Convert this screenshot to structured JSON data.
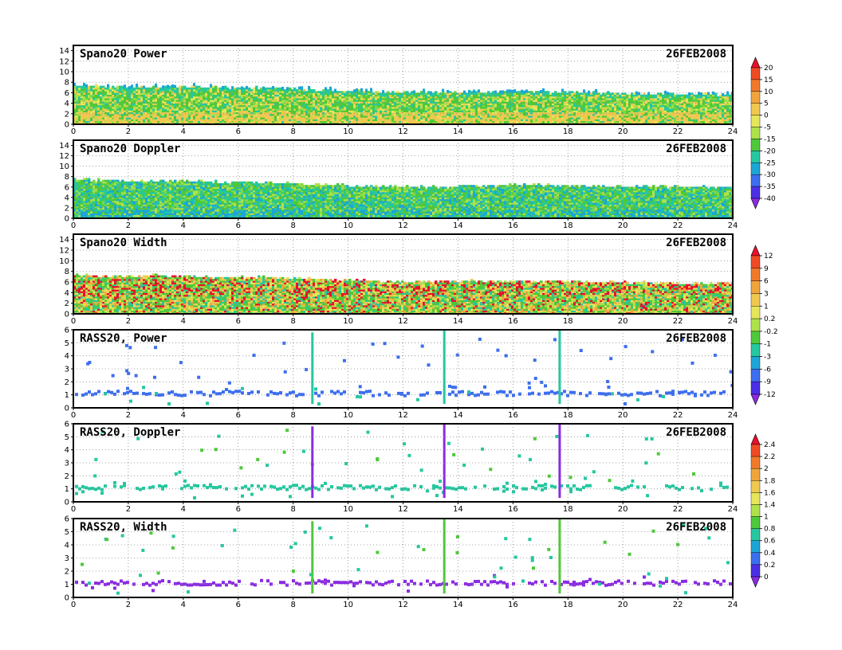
{
  "figure": {
    "date": "26FEB2008"
  },
  "chart_data": [
    {
      "type": "heatmap",
      "title": "Spano20 Power",
      "date": "26FEB2008",
      "xlim": [
        0,
        24
      ],
      "ylim": [
        0,
        15
      ],
      "xticks": [
        "0",
        "2",
        "4",
        "6",
        "8",
        "10",
        "12",
        "14",
        "16",
        "18",
        "20",
        "22",
        "24"
      ],
      "yticks": [
        "0",
        "2",
        "4",
        "6",
        "8",
        "10",
        "12",
        "14"
      ],
      "grid": true,
      "top_profile": [
        [
          0,
          7.2
        ],
        [
          1,
          7.2
        ],
        [
          2,
          6.9
        ],
        [
          3,
          7.0
        ],
        [
          4,
          7.1
        ],
        [
          5,
          6.9
        ],
        [
          6,
          6.8
        ],
        [
          7,
          6.8
        ],
        [
          8,
          6.6
        ],
        [
          9,
          6.4
        ],
        [
          10,
          6.2
        ],
        [
          11,
          6.1
        ],
        [
          12,
          6.0
        ],
        [
          13,
          5.9
        ],
        [
          14,
          5.9
        ],
        [
          15,
          6.0
        ],
        [
          16,
          6.1
        ],
        [
          17,
          6.0
        ],
        [
          18,
          6.0
        ],
        [
          19,
          5.9
        ],
        [
          20,
          5.8
        ],
        [
          21,
          5.6
        ],
        [
          22,
          5.5
        ],
        [
          23,
          5.5
        ],
        [
          24,
          5.5
        ]
      ]
    },
    {
      "type": "heatmap",
      "title": "Spano20 Doppler",
      "date": "26FEB2008",
      "xlim": [
        0,
        24
      ],
      "ylim": [
        0,
        15
      ],
      "xticks": [
        "0",
        "2",
        "4",
        "6",
        "8",
        "10",
        "12",
        "14",
        "16",
        "18",
        "20",
        "22",
        "24"
      ],
      "yticks": [
        "0",
        "2",
        "4",
        "6",
        "8",
        "10",
        "12",
        "14"
      ],
      "grid": true,
      "top_profile": [
        [
          0,
          7.4
        ],
        [
          1,
          7.2
        ],
        [
          2,
          7.0
        ],
        [
          3,
          7.0
        ],
        [
          4,
          7.0
        ],
        [
          5,
          6.9
        ],
        [
          6,
          6.8
        ],
        [
          7,
          6.7
        ],
        [
          8,
          6.5
        ],
        [
          9,
          6.4
        ],
        [
          10,
          6.2
        ],
        [
          11,
          6.0
        ],
        [
          12,
          6.0
        ],
        [
          13,
          5.9
        ],
        [
          14,
          5.9
        ],
        [
          15,
          6.1
        ],
        [
          16,
          6.2
        ],
        [
          17,
          6.3
        ],
        [
          18,
          6.2
        ],
        [
          19,
          6.1
        ],
        [
          20,
          6.0
        ],
        [
          21,
          6.0
        ],
        [
          22,
          5.9
        ],
        [
          23,
          5.9
        ],
        [
          24,
          5.9
        ]
      ]
    },
    {
      "type": "heatmap",
      "title": "Spano20 Width",
      "date": "26FEB2008",
      "xlim": [
        0,
        24
      ],
      "ylim": [
        0,
        15
      ],
      "xticks": [
        "0",
        "2",
        "4",
        "6",
        "8",
        "10",
        "12",
        "14",
        "16",
        "18",
        "20",
        "22",
        "24"
      ],
      "yticks": [
        "0",
        "2",
        "4",
        "6",
        "8",
        "10",
        "12",
        "14"
      ],
      "grid": true,
      "top_profile": [
        [
          0,
          7.3
        ],
        [
          1,
          7.0
        ],
        [
          2,
          6.9
        ],
        [
          3,
          7.1
        ],
        [
          4,
          7.0
        ],
        [
          5,
          6.8
        ],
        [
          6,
          6.8
        ],
        [
          7,
          6.7
        ],
        [
          8,
          6.6
        ],
        [
          9,
          6.4
        ],
        [
          10,
          6.2
        ],
        [
          11,
          6.0
        ],
        [
          12,
          6.0
        ],
        [
          13,
          6.0
        ],
        [
          14,
          6.0
        ],
        [
          15,
          6.1
        ],
        [
          16,
          6.1
        ],
        [
          17,
          6.0
        ],
        [
          18,
          6.0
        ],
        [
          19,
          5.9
        ],
        [
          20,
          5.8
        ],
        [
          21,
          5.7
        ],
        [
          22,
          5.6
        ],
        [
          23,
          5.6
        ],
        [
          24,
          5.6
        ]
      ]
    },
    {
      "type": "scatter",
      "title": "RASS20, Power",
      "date": "26FEB2008",
      "xlim": [
        0,
        24
      ],
      "ylim": [
        0,
        6
      ],
      "xticks": [
        "0",
        "2",
        "4",
        "6",
        "8",
        "10",
        "12",
        "14",
        "16",
        "18",
        "20",
        "22",
        "24"
      ],
      "yticks": [
        "0",
        "1",
        "2",
        "3",
        "4",
        "5",
        "6"
      ],
      "grid": true,
      "vertical_bars": [
        8.7,
        13.5,
        17.7
      ],
      "band_height": 1.1
    },
    {
      "type": "scatter",
      "title": "RASS20, Doppler",
      "date": "26FEB2008",
      "xlim": [
        0,
        24
      ],
      "ylim": [
        0,
        6
      ],
      "xticks": [
        "0",
        "2",
        "4",
        "6",
        "8",
        "10",
        "12",
        "14",
        "16",
        "18",
        "20",
        "22",
        "24"
      ],
      "yticks": [
        "0",
        "1",
        "2",
        "3",
        "4",
        "5",
        "6"
      ],
      "grid": true,
      "vertical_bars": [
        8.7,
        13.5,
        17.7
      ],
      "band_height": 1.1
    },
    {
      "type": "scatter",
      "title": "RASS20, Width",
      "date": "26FEB2008",
      "xlim": [
        0,
        24
      ],
      "ylim": [
        0,
        6
      ],
      "xticks": [
        "0",
        "2",
        "4",
        "6",
        "8",
        "10",
        "12",
        "14",
        "16",
        "18",
        "20",
        "22",
        "24"
      ],
      "yticks": [
        "0",
        "1",
        "2",
        "3",
        "4",
        "5",
        "6"
      ],
      "grid": true,
      "vertical_bars": [
        8.7,
        13.5,
        17.7
      ],
      "band_height": 1.1
    }
  ],
  "colorbars": [
    {
      "labels": [
        "20",
        "15",
        "10",
        "5",
        "0",
        "-5",
        "-15",
        "-20",
        "-25",
        "-30",
        "-35",
        "-40"
      ],
      "colors": [
        "#e8102a",
        "#f04a24",
        "#f07a2a",
        "#f0a53c",
        "#f0c850",
        "#e6e65a",
        "#aee24a",
        "#4ec93a",
        "#25c8a0",
        "#1ba6d6",
        "#3c6ef0",
        "#4b2fe6",
        "#8a2be2"
      ]
    },
    {
      "labels": [
        "12",
        "9",
        "6",
        "3",
        "1",
        "0.2",
        "-0.2",
        "-1",
        "-3",
        "-6",
        "-9",
        "-12"
      ],
      "colors": [
        "#e8102a",
        "#f04a24",
        "#f07a2a",
        "#f0a53c",
        "#f0c850",
        "#e6e65a",
        "#aee24a",
        "#4ec93a",
        "#25c8a0",
        "#1ba6d6",
        "#3c6ef0",
        "#4b2fe6",
        "#8a2be2"
      ]
    },
    {
      "labels": [
        "2.4",
        "2.2",
        "2",
        "1.8",
        "1.6",
        "1.4",
        "1",
        "0.8",
        "0.6",
        "0.4",
        "0.2",
        "0"
      ],
      "colors": [
        "#e8102a",
        "#f04a24",
        "#f07a2a",
        "#f0a53c",
        "#f0c850",
        "#e6e65a",
        "#aee24a",
        "#4ec93a",
        "#25c8a0",
        "#1ba6d6",
        "#3c6ef0",
        "#4b2fe6",
        "#8a2be2"
      ]
    }
  ]
}
